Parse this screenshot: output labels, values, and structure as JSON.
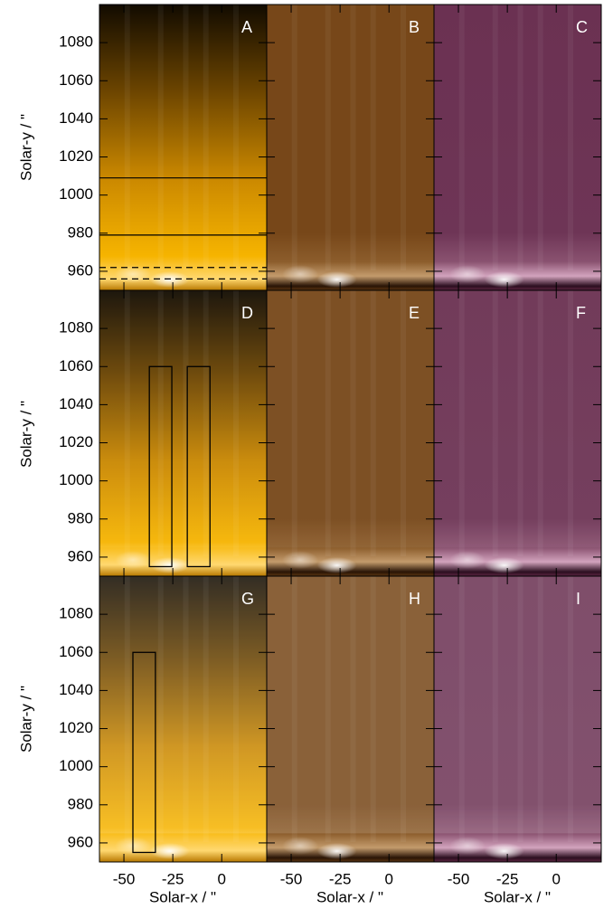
{
  "panels": [
    {
      "label": "A",
      "hlines": [
        {
          "y": 1009,
          "style": "solid"
        },
        {
          "y": 979,
          "style": "solid"
        },
        {
          "y": 962,
          "style": "dashed"
        },
        {
          "y": 956,
          "style": "dashed"
        }
      ]
    },
    {
      "label": "B"
    },
    {
      "label": "C"
    },
    {
      "label": "D",
      "boxes": [
        {
          "x": [
            -37,
            -25.5
          ],
          "y": [
            955,
            1060
          ]
        },
        {
          "x": [
            -17.6,
            -6
          ],
          "y": [
            955,
            1060
          ]
        }
      ]
    },
    {
      "label": "E"
    },
    {
      "label": "F"
    },
    {
      "label": "G",
      "boxes": [
        {
          "x": [
            -45.4,
            -33.9
          ],
          "y": [
            955,
            1060
          ]
        }
      ]
    },
    {
      "label": "H"
    },
    {
      "label": "I"
    }
  ],
  "axes": {
    "x_label": "Solar-x / \"",
    "y_label": "Solar-y / \"",
    "xlim": [
      -62.5,
      23
    ],
    "ylim": [
      950,
      1100
    ],
    "xticks": [
      -50,
      -25,
      0
    ],
    "yticks": [
      960,
      980,
      1000,
      1020,
      1040,
      1060,
      1080
    ]
  }
}
